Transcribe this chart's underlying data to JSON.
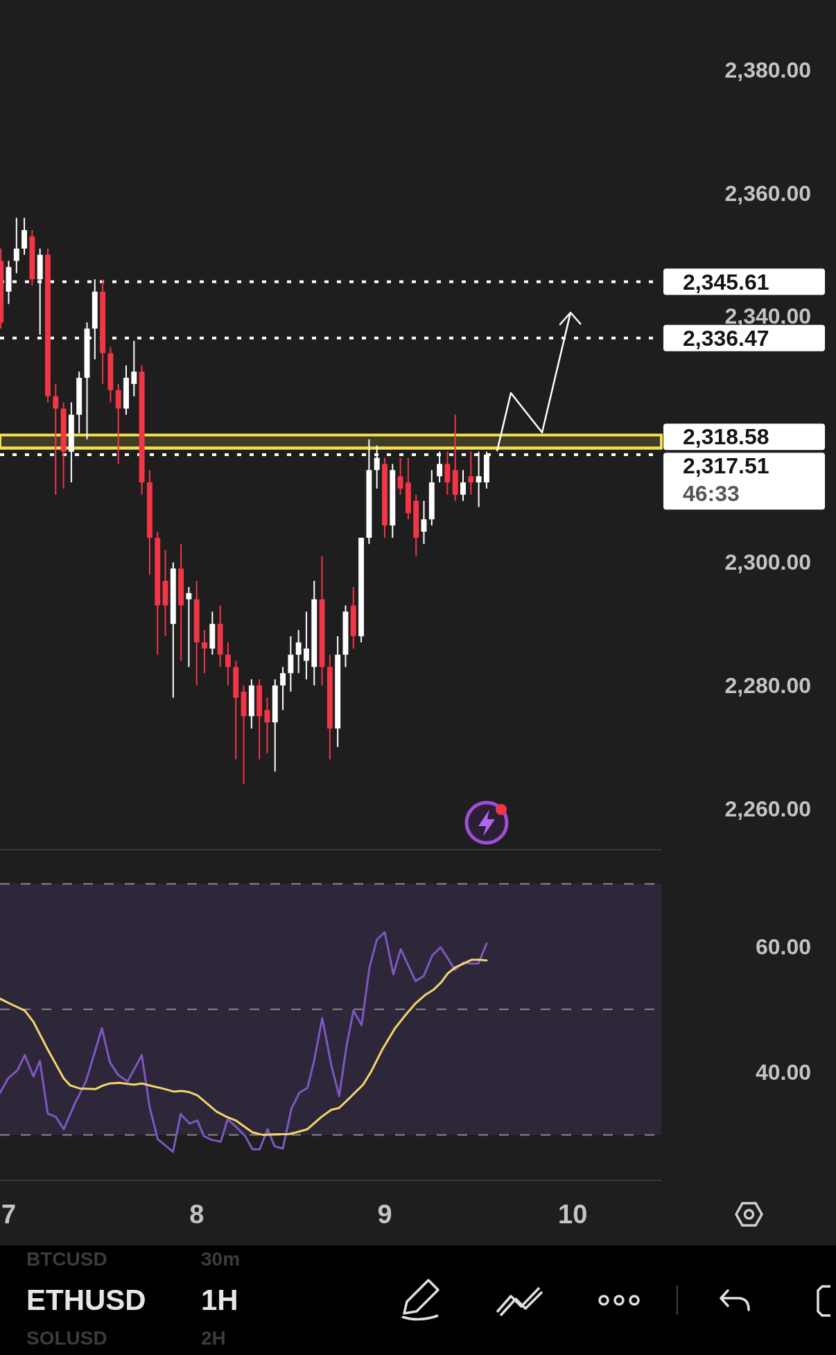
{
  "chart_data": [
    {
      "type": "candlestick",
      "xlim": [
        6.954,
        10.471
      ],
      "ylim": [
        2253.3,
        2391.4
      ],
      "tick_labels": "y",
      "yticks": [
        {
          "value": 2260,
          "label": "2,260.00"
        },
        {
          "value": 2280,
          "label": "2,280.00"
        },
        {
          "value": 2300,
          "label": "2,300.00"
        },
        {
          "value": 2340,
          "label": "2,340.00"
        },
        {
          "value": 2360,
          "label": "2,360.00"
        },
        {
          "value": 2380,
          "label": "2,380.00"
        }
      ],
      "x": [
        6.9583,
        7,
        7.0417,
        7.0833,
        7.125,
        7.1667,
        7.2083,
        7.25,
        7.2917,
        7.3333,
        7.375,
        7.4167,
        7.4583,
        7.5,
        7.5417,
        7.5833,
        7.625,
        7.6667,
        7.7083,
        7.75,
        7.7917,
        7.8333,
        7.875,
        7.9167,
        7.9583,
        8,
        8.0417,
        8.0833,
        8.125,
        8.1667,
        8.2083,
        8.25,
        8.2917,
        8.3333,
        8.375,
        8.4167,
        8.4583,
        8.5,
        8.5417,
        8.5833,
        8.625,
        8.6667,
        8.7083,
        8.75,
        8.7917,
        8.8333,
        8.875,
        8.9167,
        8.9583,
        9,
        9.0417,
        9.0833,
        9.125,
        9.1667,
        9.2083,
        9.25,
        9.2917,
        9.3333,
        9.375,
        9.4167,
        9.4583,
        9.5,
        9.5417
      ],
      "ohlc": [
        [
          2349,
          2351,
          2338,
          2339
        ],
        [
          2344,
          2349,
          2342,
          2348
        ],
        [
          2349,
          2356,
          2347,
          2351
        ],
        [
          2351,
          2356,
          2350,
          2354
        ],
        [
          2353,
          2354,
          2345,
          2346
        ],
        [
          2346,
          2351,
          2337,
          2350
        ],
        [
          2350,
          2351,
          2326,
          2327
        ],
        [
          2327,
          2329,
          2311,
          2325
        ],
        [
          2325,
          2326,
          2312,
          2318
        ],
        [
          2318,
          2326,
          2313,
          2324
        ],
        [
          2324,
          2331,
          2321,
          2330
        ],
        [
          2330,
          2339,
          2320,
          2338
        ],
        [
          2338,
          2346,
          2333,
          2344
        ],
        [
          2344,
          2346,
          2329,
          2334
        ],
        [
          2334,
          2335,
          2326,
          2328
        ],
        [
          2328,
          2329,
          2316,
          2325
        ],
        [
          2325,
          2332,
          2324,
          2330
        ],
        [
          2329,
          2336,
          2327,
          2331
        ],
        [
          2331,
          2332,
          2311,
          2313
        ],
        [
          2313,
          2315,
          2298,
          2304
        ],
        [
          2304,
          2305,
          2285,
          2293
        ],
        [
          2297,
          2302,
          2288,
          2293
        ],
        [
          2290,
          2300,
          2278,
          2299
        ],
        [
          2299,
          2303,
          2284,
          2293
        ],
        [
          2294,
          2296,
          2283,
          2295
        ],
        [
          2294,
          2297,
          2280,
          2287
        ],
        [
          2287,
          2289,
          2282,
          2286
        ],
        [
          2286,
          2292,
          2285,
          2290
        ],
        [
          2290,
          2293,
          2283,
          2285
        ],
        [
          2285,
          2287,
          2280,
          2283
        ],
        [
          2283,
          2284,
          2268,
          2278
        ],
        [
          2279,
          2280,
          2264,
          2275
        ],
        [
          2275,
          2281,
          2273,
          2280
        ],
        [
          2280,
          2281,
          2268,
          2275
        ],
        [
          2276,
          2278,
          2269,
          2274
        ],
        [
          2274,
          2281,
          2266,
          2280
        ],
        [
          2280,
          2283,
          2276,
          2282
        ],
        [
          2282,
          2288,
          2279,
          2285
        ],
        [
          2285,
          2289,
          2282,
          2287
        ],
        [
          2284,
          2292,
          2281,
          2286
        ],
        [
          2283,
          2297,
          2280,
          2294
        ],
        [
          2294,
          2301,
          2280,
          2283
        ],
        [
          2283,
          2285,
          2268,
          2273
        ],
        [
          2273,
          2288,
          2270,
          2285
        ],
        [
          2285,
          2293,
          2283,
          2292
        ],
        [
          2293,
          2296,
          2286,
          2288
        ],
        [
          2288,
          2304,
          2287,
          2304
        ],
        [
          2304,
          2320,
          2303,
          2315
        ],
        [
          2315,
          2319,
          2312,
          2317
        ],
        [
          2316,
          2317,
          2304,
          2306
        ],
        [
          2306,
          2316,
          2304,
          2315
        ],
        [
          2314,
          2317,
          2311,
          2312
        ],
        [
          2313,
          2317,
          2307,
          2308
        ],
        [
          2310,
          2311,
          2301,
          2304
        ],
        [
          2305,
          2310,
          2303,
          2307
        ],
        [
          2307,
          2315,
          2306,
          2313
        ],
        [
          2314,
          2318,
          2313,
          2316
        ],
        [
          2316,
          2318,
          2311,
          2313
        ],
        [
          2315,
          2324,
          2310,
          2311
        ],
        [
          2311,
          2315,
          2310,
          2313
        ],
        [
          2314,
          2318,
          2311,
          2313
        ],
        [
          2313,
          2318,
          2309,
          2314
        ],
        [
          2313,
          2318,
          2312,
          2317.51
        ]
      ],
      "ref_lines": [
        {
          "axis": "y",
          "value": 2345.61,
          "label": "2,345.61",
          "color": "#ffffff",
          "line_style": "dotted"
        },
        {
          "axis": "y",
          "value": 2336.47,
          "label": "2,336.47",
          "color": "#ffffff",
          "line_style": "dotted"
        },
        {
          "axis": "y",
          "value": 2318.58,
          "label": "2,318.58",
          "color": "#f5e04a",
          "line_style": "solid"
        },
        {
          "axis": "y",
          "value": 2317.51,
          "label": "2,317.51",
          "color": "#ffffff",
          "line_style": "dotted"
        }
      ],
      "bands": [
        {
          "axis": "y",
          "from": 2318.58,
          "to": 2320.7,
          "color": "#f5e04a"
        }
      ],
      "annotations": [
        "46:33"
      ]
    },
    {
      "type": "line",
      "xlim": [
        6.954,
        10.471
      ],
      "xticks": [
        7,
        8,
        9,
        10
      ],
      "ylim": [
        22.75,
        75.45
      ],
      "yticks": [
        {
          "value": 40,
          "label": "40.00"
        },
        {
          "value": 60,
          "label": "60.00"
        }
      ],
      "series": [
        {
          "color": "#7e57c2",
          "x": [
            6.954,
            6.997,
            7.047,
            7.086,
            7.132,
            7.166,
            7.208,
            7.25,
            7.293,
            7.352,
            7.411,
            7.496,
            7.538,
            7.581,
            7.632,
            7.708,
            7.75,
            7.793,
            7.874,
            7.915,
            7.962,
            8.004,
            8.038,
            8.081,
            8.128,
            8.165,
            8.216,
            8.258,
            8.297,
            8.335,
            8.377,
            8.414,
            8.458,
            8.504,
            8.546,
            8.589,
            8.623,
            8.668,
            8.716,
            8.758,
            8.797,
            8.834,
            8.877,
            8.919,
            8.958,
            9,
            9.046,
            9.085,
            9.127,
            9.164,
            9.207,
            9.253,
            9.297,
            9.334,
            9.373,
            9.419,
            9.458,
            9.498,
            9.542
          ],
          "values": [
            36.7,
            39,
            40.3,
            42.7,
            39.3,
            41.8,
            33.4,
            32.9,
            30.9,
            35,
            38.5,
            47,
            41.6,
            39.6,
            38.5,
            42.7,
            34.4,
            29.3,
            27.3,
            33.3,
            31.8,
            32.3,
            29.8,
            29.2,
            28.9,
            32.5,
            31.1,
            29.8,
            27.7,
            27.7,
            30.9,
            28.2,
            27.8,
            34.2,
            36.7,
            37.5,
            41.6,
            48.6,
            41.1,
            36.2,
            44.2,
            49.8,
            47.5,
            56.7,
            61.1,
            62.3,
            55.6,
            59.6,
            56.9,
            54.5,
            55.3,
            58.6,
            59.9,
            58.2,
            56.3,
            57.5,
            57.3,
            57.3,
            60.5
          ]
        },
        {
          "color": "#f5d66b",
          "x": [
            6.954,
            7.022,
            7.086,
            7.132,
            7.208,
            7.293,
            7.327,
            7.377,
            7.462,
            7.496,
            7.538,
            7.589,
            7.666,
            7.708,
            7.759,
            7.818,
            7.877,
            7.92,
            7.962,
            8.004,
            8.055,
            8.106,
            8.157,
            8.208,
            8.25,
            8.297,
            8.352,
            8.428,
            8.487,
            8.53,
            8.589,
            8.665,
            8.716,
            8.758,
            8.817,
            8.885,
            8.928,
            8.987,
            9.055,
            9.105,
            9.165,
            9.215,
            9.258,
            9.3,
            9.334,
            9.376,
            9.419,
            9.461,
            9.504,
            9.542
          ],
          "values": [
            51.7,
            50.7,
            49.8,
            48,
            43.6,
            39,
            37.9,
            37.4,
            37.3,
            37.8,
            38.2,
            38.3,
            38,
            38.2,
            37.8,
            37.4,
            36.9,
            37,
            36.8,
            36.3,
            35,
            33.7,
            32.9,
            32.3,
            31.4,
            30.4,
            30,
            30.1,
            30.1,
            30.4,
            30.9,
            32.9,
            34,
            34.3,
            36,
            38,
            40.1,
            43.6,
            47,
            48.9,
            51,
            52.3,
            53.1,
            54.3,
            55.7,
            56.7,
            57.3,
            57.9,
            57.9,
            57.8
          ]
        }
      ],
      "ref_lines": [
        {
          "axis": "y",
          "value": 30,
          "color": "#8a8a8a",
          "line_style": "dashed"
        },
        {
          "axis": "y",
          "value": 50,
          "color": "#8a8a8a",
          "line_style": "dashed"
        },
        {
          "axis": "y",
          "value": 70,
          "color": "#8a8a8a",
          "line_style": "dashed"
        }
      ],
      "bands": [
        {
          "axis": "y",
          "from": 30,
          "to": 70,
          "color": "#7e57c2"
        }
      ],
      "annotations": [
        "BTCUSD",
        "30m",
        "ETHUSD",
        "1H",
        "SOLUSD",
        "2H"
      ]
    }
  ]
}
